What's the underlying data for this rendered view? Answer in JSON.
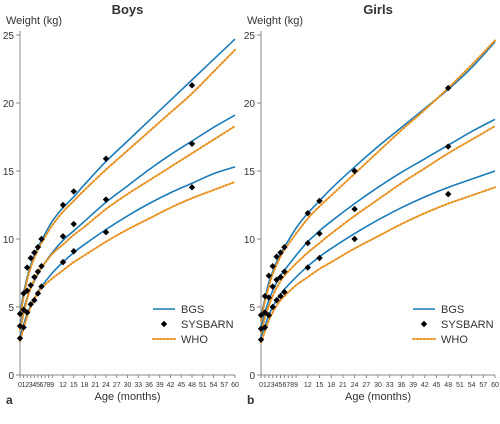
{
  "colors": {
    "bgs": "#1a7bb9",
    "sysbarn": "#000000",
    "who": "#e8911f",
    "axis": "#888888",
    "text": "#333333"
  },
  "chart_data": [
    {
      "type": "line",
      "title": "Boys",
      "panel_label": "a",
      "xlabel": "Age (months)",
      "ylabel": "Weight (kg)",
      "xlim": [
        0,
        60
      ],
      "ylim": [
        0,
        25
      ],
      "xticks": [
        0,
        1,
        2,
        3,
        4,
        5,
        6,
        7,
        8,
        9,
        12,
        15,
        18,
        21,
        24,
        27,
        30,
        33,
        36,
        39,
        42,
        45,
        48,
        51,
        54,
        57,
        60
      ],
      "yticks": [
        0,
        5,
        10,
        15,
        20,
        25
      ],
      "legend": [
        "BGS",
        "SYSBARN",
        "WHO"
      ],
      "legend_position": "bottom-right",
      "series": [
        {
          "name": "BGS",
          "style": "line",
          "x": [
            0,
            1,
            2,
            3,
            4,
            5,
            6,
            9,
            12,
            15,
            18,
            24,
            30,
            36,
            42,
            48,
            54,
            60
          ],
          "values": [
            4.5,
            6.0,
            7.2,
            8.1,
            8.8,
            9.4,
            9.9,
            11.3,
            12.3,
            13.1,
            14.0,
            15.7,
            17.2,
            18.7,
            20.2,
            21.7,
            23.2,
            24.7
          ]
        },
        {
          "name": "BGS",
          "style": "line",
          "x": [
            0,
            1,
            2,
            3,
            4,
            5,
            6,
            9,
            12,
            15,
            18,
            24,
            30,
            36,
            42,
            48,
            54,
            60
          ],
          "values": [
            3.6,
            4.8,
            5.7,
            6.4,
            6.9,
            7.4,
            7.9,
            9.0,
            9.9,
            10.6,
            11.3,
            12.7,
            13.9,
            15.1,
            16.2,
            17.2,
            18.2,
            19.1
          ]
        },
        {
          "name": "BGS",
          "style": "line",
          "x": [
            0,
            1,
            2,
            3,
            4,
            5,
            6,
            9,
            12,
            15,
            18,
            24,
            30,
            36,
            42,
            48,
            54,
            60
          ],
          "values": [
            2.8,
            3.7,
            4.5,
            5.1,
            5.6,
            6.1,
            6.5,
            7.5,
            8.3,
            9.0,
            9.6,
            10.7,
            11.7,
            12.6,
            13.4,
            14.1,
            14.8,
            15.3
          ]
        },
        {
          "name": "WHO",
          "style": "dotted",
          "x": [
            0,
            1,
            2,
            3,
            4,
            5,
            6,
            9,
            12,
            15,
            18,
            24,
            30,
            36,
            42,
            48,
            54,
            60
          ],
          "values": [
            4.3,
            5.7,
            7.0,
            7.9,
            8.6,
            9.2,
            9.7,
            11.0,
            12.0,
            12.8,
            13.6,
            15.1,
            16.5,
            17.9,
            19.3,
            20.7,
            22.3,
            23.9
          ]
        },
        {
          "name": "WHO",
          "style": "dotted",
          "x": [
            0,
            1,
            2,
            3,
            4,
            5,
            6,
            9,
            12,
            15,
            18,
            24,
            30,
            36,
            42,
            48,
            54,
            60
          ],
          "values": [
            3.3,
            4.5,
            5.6,
            6.4,
            7.0,
            7.5,
            7.9,
            8.9,
            9.6,
            10.3,
            10.9,
            12.2,
            13.3,
            14.3,
            15.3,
            16.3,
            17.3,
            18.3
          ]
        },
        {
          "name": "WHO",
          "style": "dotted",
          "x": [
            0,
            1,
            2,
            3,
            4,
            5,
            6,
            9,
            12,
            15,
            18,
            24,
            30,
            36,
            42,
            48,
            54,
            60
          ],
          "values": [
            2.5,
            3.4,
            4.3,
            5.0,
            5.6,
            6.0,
            6.4,
            7.1,
            7.7,
            8.3,
            8.8,
            9.8,
            10.7,
            11.5,
            12.3,
            13.0,
            13.6,
            14.2
          ]
        },
        {
          "name": "SYSBARN",
          "style": "marker",
          "x": [
            0,
            1,
            2,
            3,
            4,
            5,
            6,
            12,
            15,
            24,
            48
          ],
          "values": [
            4.5,
            6.0,
            7.9,
            8.6,
            9.0,
            9.4,
            10.0,
            12.5,
            13.5,
            15.9,
            21.3
          ]
        },
        {
          "name": "SYSBARN",
          "style": "marker",
          "x": [
            0,
            1,
            2,
            3,
            4,
            5,
            6,
            12,
            15,
            24,
            48
          ],
          "values": [
            3.6,
            4.8,
            6.2,
            6.6,
            7.2,
            7.6,
            8.0,
            10.2,
            11.1,
            12.9,
            17.0
          ]
        },
        {
          "name": "SYSBARN",
          "style": "marker",
          "x": [
            0,
            1,
            2,
            3,
            4,
            5,
            6,
            12,
            15,
            24,
            48
          ],
          "values": [
            2.7,
            3.5,
            4.6,
            5.2,
            5.5,
            6.0,
            6.5,
            8.3,
            9.1,
            10.5,
            13.8
          ]
        }
      ]
    },
    {
      "type": "line",
      "title": "Girls",
      "panel_label": "b",
      "xlabel": "Age (months)",
      "ylabel": "Weight (kg)",
      "xlim": [
        0,
        60
      ],
      "ylim": [
        0,
        25
      ],
      "xticks": [
        0,
        1,
        2,
        3,
        4,
        5,
        6,
        7,
        8,
        9,
        12,
        15,
        18,
        21,
        24,
        27,
        30,
        33,
        36,
        39,
        42,
        45,
        48,
        51,
        54,
        57,
        60
      ],
      "yticks": [
        0,
        5,
        10,
        15,
        20,
        25
      ],
      "legend": [
        "BGS",
        "SYSBARN",
        "WHO"
      ],
      "legend_position": "bottom-right",
      "series": [
        {
          "name": "BGS",
          "style": "line",
          "x": [
            0,
            1,
            2,
            3,
            4,
            5,
            6,
            9,
            12,
            15,
            18,
            24,
            30,
            36,
            42,
            48,
            54,
            60
          ],
          "values": [
            4.3,
            5.6,
            6.8,
            7.6,
            8.3,
            8.9,
            9.4,
            10.8,
            11.9,
            12.8,
            13.7,
            15.3,
            16.8,
            18.2,
            19.6,
            21.0,
            22.6,
            24.5
          ]
        },
        {
          "name": "BGS",
          "style": "line",
          "x": [
            0,
            1,
            2,
            3,
            4,
            5,
            6,
            9,
            12,
            15,
            18,
            24,
            30,
            36,
            42,
            48,
            54,
            60
          ],
          "values": [
            3.5,
            4.6,
            5.5,
            6.2,
            6.8,
            7.3,
            7.7,
            8.8,
            9.8,
            10.6,
            11.3,
            12.6,
            13.8,
            14.9,
            15.9,
            16.9,
            17.9,
            18.8
          ]
        },
        {
          "name": "BGS",
          "style": "line",
          "x": [
            0,
            1,
            2,
            3,
            4,
            5,
            6,
            9,
            12,
            15,
            18,
            24,
            30,
            36,
            42,
            48,
            54,
            60
          ],
          "values": [
            2.8,
            3.6,
            4.4,
            5.0,
            5.5,
            5.9,
            6.3,
            7.2,
            8.0,
            8.7,
            9.3,
            10.4,
            11.4,
            12.3,
            13.1,
            13.8,
            14.4,
            15.0
          ]
        },
        {
          "name": "WHO",
          "style": "dotted",
          "x": [
            0,
            1,
            2,
            3,
            4,
            5,
            6,
            9,
            12,
            15,
            18,
            24,
            30,
            36,
            42,
            48,
            54,
            60
          ],
          "values": [
            4.0,
            5.4,
            6.5,
            7.4,
            8.1,
            8.7,
            9.2,
            10.4,
            11.5,
            12.4,
            13.2,
            14.8,
            16.4,
            18.0,
            19.5,
            21.1,
            22.8,
            24.6
          ]
        },
        {
          "name": "WHO",
          "style": "dotted",
          "x": [
            0,
            1,
            2,
            3,
            4,
            5,
            6,
            9,
            12,
            15,
            18,
            24,
            30,
            36,
            42,
            48,
            54,
            60
          ],
          "values": [
            3.1,
            4.2,
            5.1,
            5.8,
            6.4,
            6.9,
            7.3,
            8.2,
            9.0,
            9.7,
            10.4,
            11.7,
            12.9,
            14.1,
            15.2,
            16.3,
            17.3,
            18.3
          ]
        },
        {
          "name": "WHO",
          "style": "dotted",
          "x": [
            0,
            1,
            2,
            3,
            4,
            5,
            6,
            9,
            12,
            15,
            18,
            24,
            30,
            36,
            42,
            48,
            54,
            60
          ],
          "values": [
            2.4,
            3.2,
            4.0,
            4.6,
            5.1,
            5.5,
            5.8,
            6.6,
            7.2,
            7.8,
            8.3,
            9.3,
            10.2,
            11.1,
            11.9,
            12.6,
            13.2,
            13.8
          ]
        },
        {
          "name": "SYSBARN",
          "style": "marker",
          "x": [
            0,
            1,
            2,
            3,
            4,
            5,
            6,
            12,
            15,
            24,
            48
          ],
          "values": [
            4.4,
            5.8,
            7.3,
            8.0,
            8.7,
            9.0,
            9.4,
            11.9,
            12.8,
            15.0,
            21.1
          ]
        },
        {
          "name": "SYSBARN",
          "style": "marker",
          "x": [
            0,
            1,
            2,
            3,
            4,
            5,
            6,
            12,
            15,
            24,
            48
          ],
          "values": [
            3.4,
            4.6,
            5.7,
            6.5,
            7.0,
            7.2,
            7.6,
            9.7,
            10.4,
            12.2,
            16.8
          ]
        },
        {
          "name": "SYSBARN",
          "style": "marker",
          "x": [
            0,
            1,
            2,
            3,
            4,
            5,
            6,
            12,
            15,
            24,
            48
          ],
          "values": [
            2.6,
            3.5,
            4.4,
            5.0,
            5.5,
            5.8,
            6.1,
            7.9,
            8.6,
            10.0,
            13.3
          ]
        }
      ]
    }
  ]
}
